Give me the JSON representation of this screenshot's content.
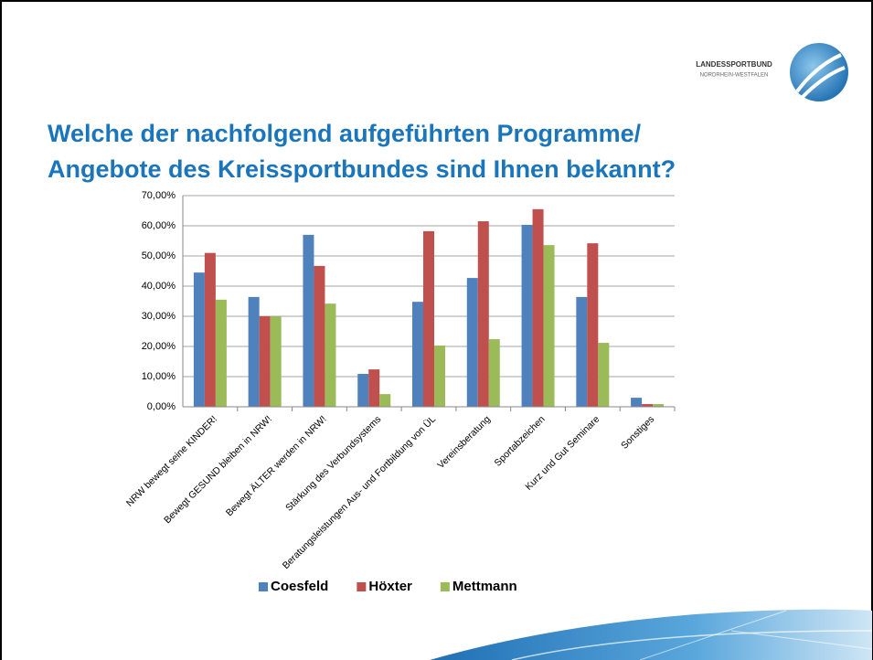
{
  "logo": {
    "line1": "LANDESSPORTBUND",
    "line2": "NORDRHEIN-WESTFALEN"
  },
  "chart_data": {
    "type": "bar",
    "title": [
      "Welche der nachfolgend aufgeführten Programme/",
      "Angebote des Kreissportbundes sind Ihnen bekannt?"
    ],
    "categories": [
      "NRW bewegt seine KINDER!",
      "Bewegt GESUND bleiben in NRW!",
      "Bewegt ÄLTER werden in NRW!",
      "Stärkung des Verbundsystems",
      "Beratungsleistungen Aus- und Fortbildung von ÜL",
      "Vereinsberatung",
      "Sportabzeichen",
      "Kurz und Gut Seminare",
      "Sonstiges"
    ],
    "series": [
      {
        "name": "Coesfeld",
        "color": "#4f81bd",
        "values": [
          44.5,
          36.4,
          57,
          10.9,
          34.8,
          42.7,
          60.3,
          36.4,
          3
        ]
      },
      {
        "name": "Höxter",
        "color": "#c0504d",
        "values": [
          51,
          30,
          46.7,
          12.4,
          58.2,
          61.5,
          65.5,
          54.2,
          0.9
        ]
      },
      {
        "name": "Mettmann",
        "color": "#9bbb59",
        "values": [
          35.5,
          30,
          34.2,
          4.2,
          20.3,
          22.4,
          53.6,
          21.2,
          0.9
        ]
      }
    ],
    "ylim": [
      0,
      70
    ],
    "yticks": [
      {
        "value": 0,
        "label": "0,00%"
      },
      {
        "value": 10,
        "label": "10,00%"
      },
      {
        "value": 20,
        "label": "20,00%"
      },
      {
        "value": 30,
        "label": "30,00%"
      },
      {
        "value": 40,
        "label": "40,00%"
      },
      {
        "value": 50,
        "label": "50,00%"
      },
      {
        "value": 60,
        "label": "60,00%"
      },
      {
        "value": 70,
        "label": "70,00%"
      }
    ],
    "grid": true,
    "legend": "bottom"
  }
}
